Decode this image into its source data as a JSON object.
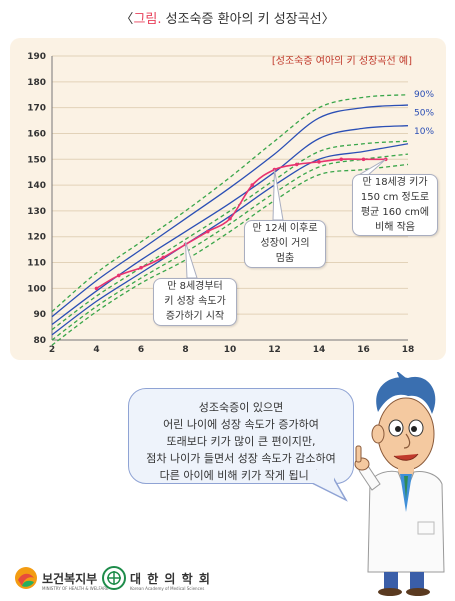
{
  "title": {
    "accent": "그림.",
    "rest": "성조숙증 환아의 키 성장곡선",
    "open": "〈",
    "close": "〉"
  },
  "chart_data": {
    "type": "line",
    "title": "",
    "inset_label": "[성조숙증 여아의 키 성장곡선 예]",
    "xlim": [
      2,
      18
    ],
    "ylim": [
      80,
      190
    ],
    "xticks": [
      2,
      4,
      6,
      8,
      10,
      12,
      14,
      16,
      18
    ],
    "yticks": [
      80,
      90,
      100,
      110,
      120,
      130,
      140,
      150,
      160,
      170,
      180,
      190
    ],
    "grid": "horizontal",
    "colors": {
      "percentile_solid": "#2b4fb5",
      "percentile_dashed": "#3aa64a",
      "patient": "#e8336e",
      "label": "#2b4fb5"
    },
    "series": [
      {
        "name": "90%",
        "style": "solid",
        "x": [
          2,
          4,
          6,
          8,
          10,
          12,
          14,
          16,
          18
        ],
        "y": [
          89,
          103,
          115,
          127,
          139,
          152,
          166,
          170,
          171
        ]
      },
      {
        "name": "50%",
        "style": "solid",
        "x": [
          2,
          4,
          6,
          8,
          10,
          12,
          14,
          16,
          18
        ],
        "y": [
          86,
          99,
          111,
          122,
          133,
          145,
          158,
          162,
          163
        ]
      },
      {
        "name": "10%",
        "style": "solid",
        "x": [
          2,
          4,
          6,
          8,
          10,
          12,
          14,
          16,
          18
        ],
        "y": [
          82,
          95,
          106,
          117,
          128,
          140,
          150,
          153,
          156
        ]
      },
      {
        "name": "",
        "style": "dashed",
        "x": [
          2,
          4,
          6,
          8,
          10,
          12,
          14,
          16,
          18
        ],
        "y": [
          91,
          106,
          118,
          130,
          143,
          157,
          170,
          174,
          175
        ]
      },
      {
        "name": "",
        "style": "dashed",
        "x": [
          2,
          4,
          6,
          8,
          10,
          12,
          14,
          16,
          18
        ],
        "y": [
          84,
          97,
          108,
          119,
          130,
          142,
          153,
          156,
          157
        ]
      },
      {
        "name": "",
        "style": "dashed",
        "x": [
          2,
          4,
          6,
          8,
          10,
          12,
          14,
          16,
          18
        ],
        "y": [
          80,
          93,
          104,
          114,
          125,
          137,
          147,
          150,
          152
        ]
      },
      {
        "name": "",
        "style": "dashed",
        "x": [
          2,
          4,
          6,
          8,
          10,
          12,
          14,
          16,
          18
        ],
        "y": [
          78,
          91,
          102,
          111,
          122,
          134,
          144,
          146,
          148
        ]
      },
      {
        "name": "",
        "style": "patient",
        "x": [
          4,
          5,
          6,
          7,
          8,
          9,
          10,
          11,
          12,
          13,
          14,
          15,
          16,
          17
        ],
        "y": [
          100,
          105,
          108,
          112,
          117,
          122,
          127,
          140,
          146,
          148,
          149,
          150,
          150,
          150
        ]
      }
    ],
    "annotations": [
      {
        "id": "age8",
        "lines": [
          "만 8세경부터",
          "키 성장 속도가",
          "증가하기 시작"
        ]
      },
      {
        "id": "age12",
        "lines": [
          "만 12세 이후로",
          "성장이 거의",
          "멈춤"
        ]
      },
      {
        "id": "age18",
        "lines": [
          "만 18세경 키가",
          "150 cm 정도로",
          "평균 160 cm에",
          "비해 작음"
        ]
      }
    ]
  },
  "bubble": {
    "lines": [
      "성조숙증이 있으면",
      "어린 나이에 성장 속도가 증가하여",
      "또래보다 키가 많이 큰 편이지만,",
      "점차 나이가 들면서 성장 속도가 감소하여",
      "다른 아이에 비해 키가 작게 됩니다."
    ]
  },
  "footer": {
    "ministry": "보건복지부",
    "ministry_sub": "MINISTRY OF HEALTH & WELFARE",
    "academy": "대 한 의 학 회",
    "academy_sub": "Korean Academy of Medical Sciences"
  }
}
